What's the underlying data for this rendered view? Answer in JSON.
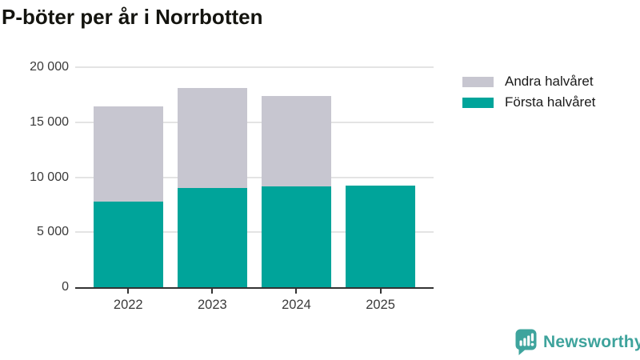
{
  "title": "P-böter per år i Norrbotten",
  "colors": {
    "first_half": "#00a49a",
    "second_half": "#c7c6d0",
    "axis": "#333333",
    "gridline": "#e4e4e4",
    "tick_label": "#3a3a3a",
    "title_text": "#14140f",
    "legend_text": "#1a1a1a",
    "brand_teal": "#3ea49d",
    "background": "#ffffff"
  },
  "y_axis": {
    "max": 20000,
    "ticks": [
      {
        "value": 0,
        "label": "0"
      },
      {
        "value": 5000,
        "label": "5 000"
      },
      {
        "value": 10000,
        "label": "10 000"
      },
      {
        "value": 15000,
        "label": "15 000"
      },
      {
        "value": 20000,
        "label": "20 000"
      }
    ]
  },
  "legend": {
    "items": [
      {
        "label": "Andra halvåret",
        "color": "#c7c6d0",
        "series": "second_half"
      },
      {
        "label": "Första halvåret",
        "color": "#00a49a",
        "series": "first_half"
      }
    ]
  },
  "chart_data": {
    "type": "bar",
    "stacked": true,
    "title": "P-böter per år i Norrbotten",
    "xlabel": "",
    "ylabel": "",
    "ylim": [
      0,
      20000
    ],
    "grid": true,
    "legend_position": "top-right",
    "categories": [
      "2022",
      "2023",
      "2024",
      "2025"
    ],
    "series": [
      {
        "name": "Första halvåret",
        "color": "#00a49a",
        "values": [
          7800,
          9000,
          9200,
          9250
        ]
      },
      {
        "name": "Andra halvåret",
        "color": "#c7c6d0",
        "values": [
          8650,
          9100,
          8200,
          0
        ]
      }
    ],
    "totals": [
      16450,
      18100,
      17400,
      9250
    ]
  },
  "branding": {
    "logo_text": "Newsworthy",
    "logo_icon": "bar-chart-speech-bubble-icon"
  }
}
